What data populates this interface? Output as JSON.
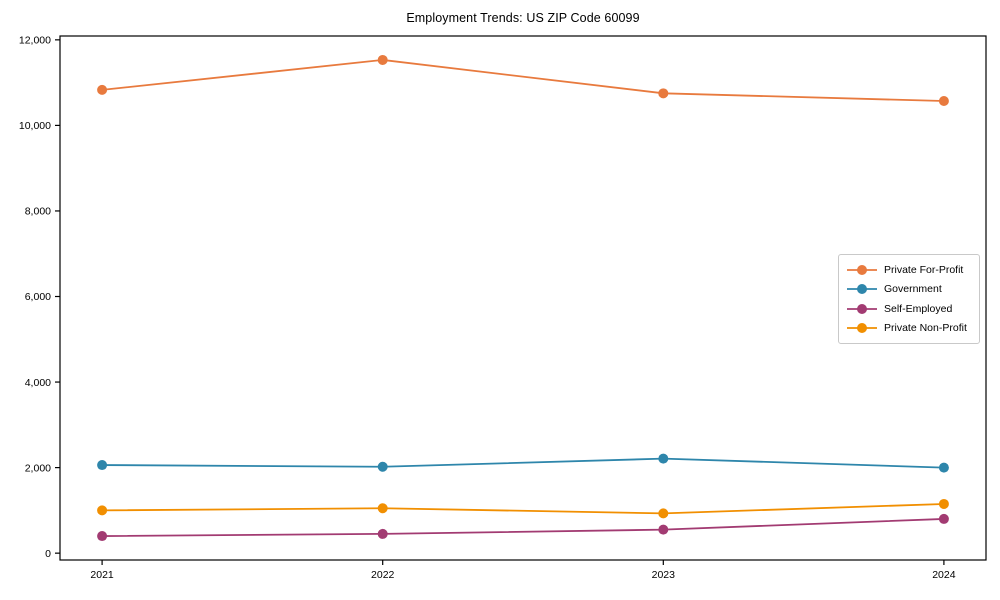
{
  "chart_data": {
    "type": "line",
    "title": "Employment Trends: US ZIP Code 60099",
    "x": [
      2021,
      2022,
      2023,
      2024
    ],
    "x_tick_labels": [
      "2021",
      "2022",
      "2023",
      "2024"
    ],
    "series": [
      {
        "name": "Private For-Profit",
        "color": "#E87A3E",
        "values": [
          10830,
          11530,
          10750,
          10570
        ]
      },
      {
        "name": "Government",
        "color": "#2E86AB",
        "values": [
          2060,
          2020,
          2210,
          2000
        ]
      },
      {
        "name": "Self-Employed",
        "color": "#A23B72",
        "values": [
          400,
          450,
          550,
          800
        ]
      },
      {
        "name": "Private Non-Profit",
        "color": "#F18F01",
        "values": [
          1000,
          1050,
          930,
          1150
        ]
      }
    ],
    "xlim": [
      2020.85,
      2024.15
    ],
    "ylim": [
      -160,
      12090
    ],
    "yticks": [
      0,
      2000,
      4000,
      6000,
      8000,
      10000,
      12000
    ],
    "ytick_labels": [
      "0",
      "2,000",
      "4,000",
      "6,000",
      "8,000",
      "10,000",
      "12,000"
    ],
    "xlabel": "",
    "ylabel": "",
    "grid": false,
    "marker": "circle",
    "legend": {
      "position": "middle-right",
      "framed": true
    },
    "axis_color": "#000000",
    "background_color": "#ffffff"
  }
}
